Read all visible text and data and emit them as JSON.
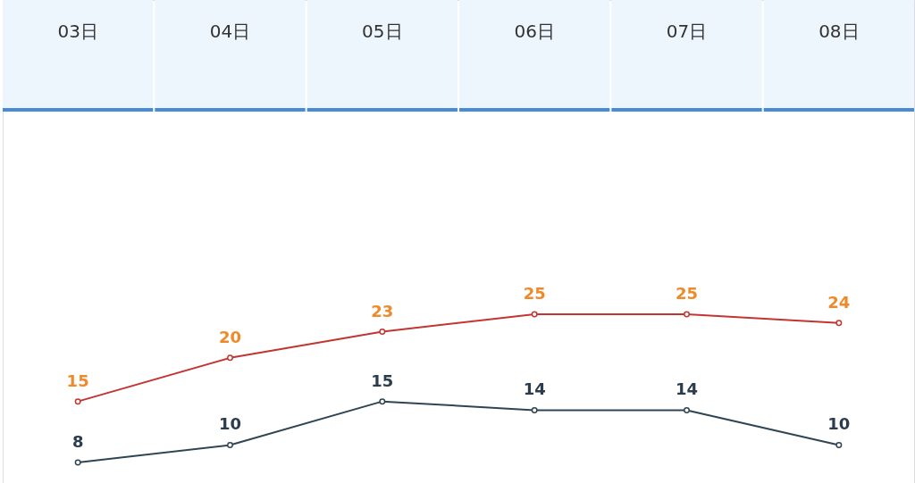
{
  "chart_data": {
    "type": "line",
    "categories": [
      "03日",
      "04日",
      "05日",
      "06日",
      "07日",
      "08日"
    ],
    "series": [
      {
        "color": "#c23531",
        "colors": [
          "#ef8a2b",
          "#ef8a2b",
          "#ef8a2b",
          "#ef8a2b",
          "#ef8a2b",
          "#ef8a2b"
        ],
        "values": [
          15,
          20,
          23,
          25,
          25,
          24
        ]
      },
      {
        "color": "#2f4554",
        "colors": [
          "#2b3c4e",
          "#2b3c4e",
          "#2b3c4e",
          "#2b3c4e",
          "#2b3c4e",
          "#2b3c4e"
        ],
        "values": [
          8,
          10,
          15,
          14,
          14,
          10
        ]
      }
    ],
    "data_labels": true,
    "marker": "circle",
    "line_style": "solid"
  }
}
